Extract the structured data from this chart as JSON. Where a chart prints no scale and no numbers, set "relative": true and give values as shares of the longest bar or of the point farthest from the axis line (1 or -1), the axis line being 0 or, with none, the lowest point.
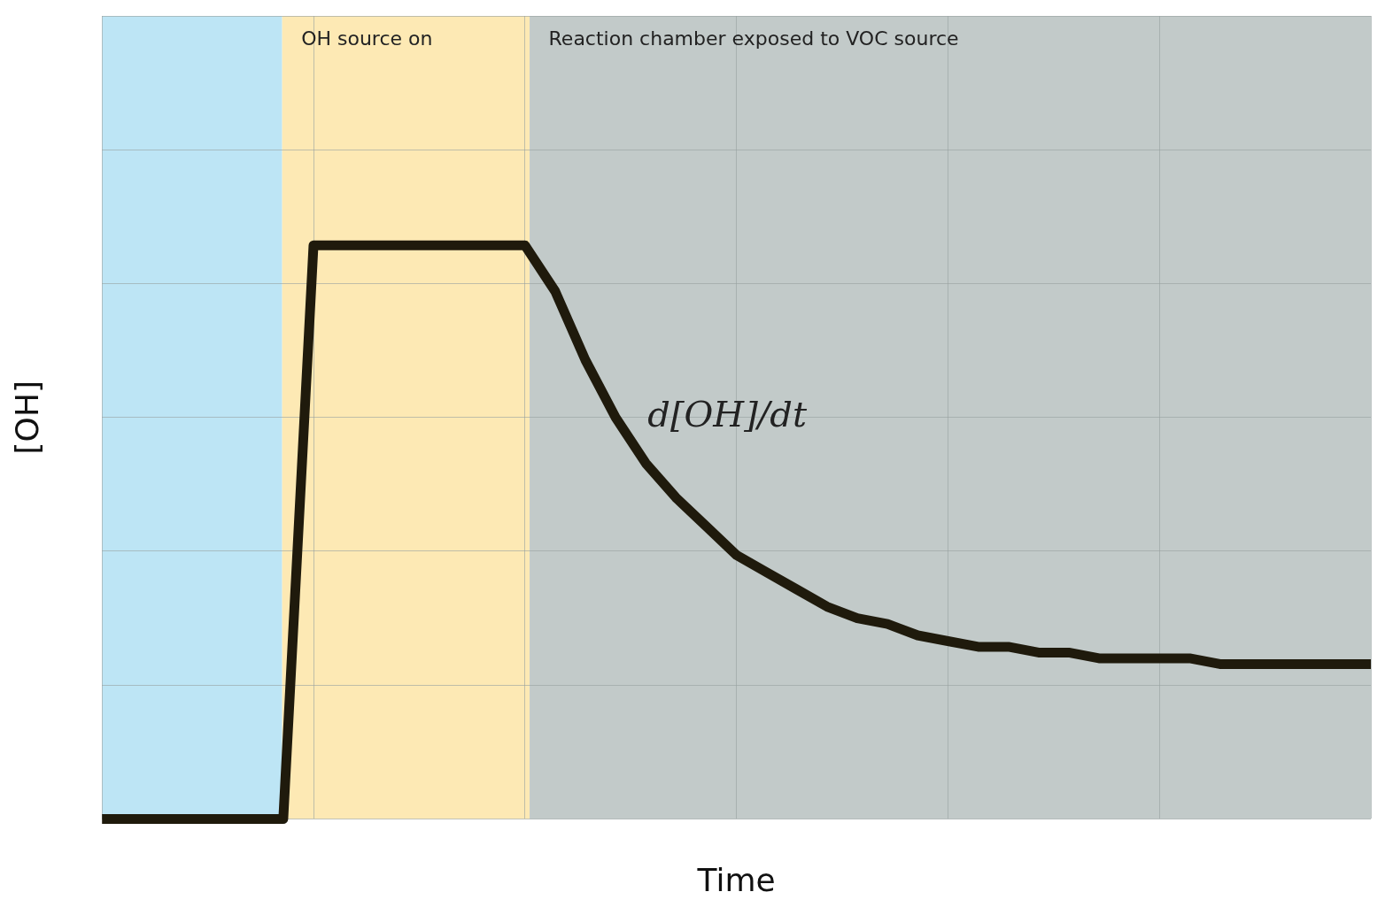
{
  "chart_data": {
    "type": "line",
    "relative": true,
    "xlabel": "Time",
    "ylabel": "[OH]",
    "grid": true,
    "legend": false,
    "marker": "none",
    "line_style": "solid",
    "categories": [
      null,
      null,
      null,
      null,
      null,
      null,
      null,
      null,
      null,
      null,
      null,
      null,
      null,
      null,
      null,
      null,
      null,
      null,
      null,
      null,
      null,
      null,
      null,
      null,
      null,
      null,
      null,
      null,
      null,
      null,
      null,
      null,
      null,
      null,
      null,
      null,
      null,
      null,
      null,
      null,
      null,
      null,
      null
    ],
    "series": [
      {
        "color": "#1f1a0c",
        "values": [
          0,
          0,
          0,
          0,
          0,
          0,
          0,
          1,
          1,
          1,
          1,
          1,
          1,
          1,
          1,
          0.92,
          0.8,
          0.7,
          0.62,
          0.56,
          0.51,
          0.46,
          0.43,
          0.4,
          0.37,
          0.35,
          0.34,
          0.32,
          0.31,
          0.3,
          0.3,
          0.29,
          0.29,
          0.28,
          0.28,
          0.28,
          0.28,
          0.27,
          0.27,
          0.27,
          0.27,
          0.27,
          0.27
        ]
      }
    ],
    "annotations": [
      "OH source on",
      "Reaction chamber exposed to VOC source",
      "d[OH]/dt"
    ]
  }
}
